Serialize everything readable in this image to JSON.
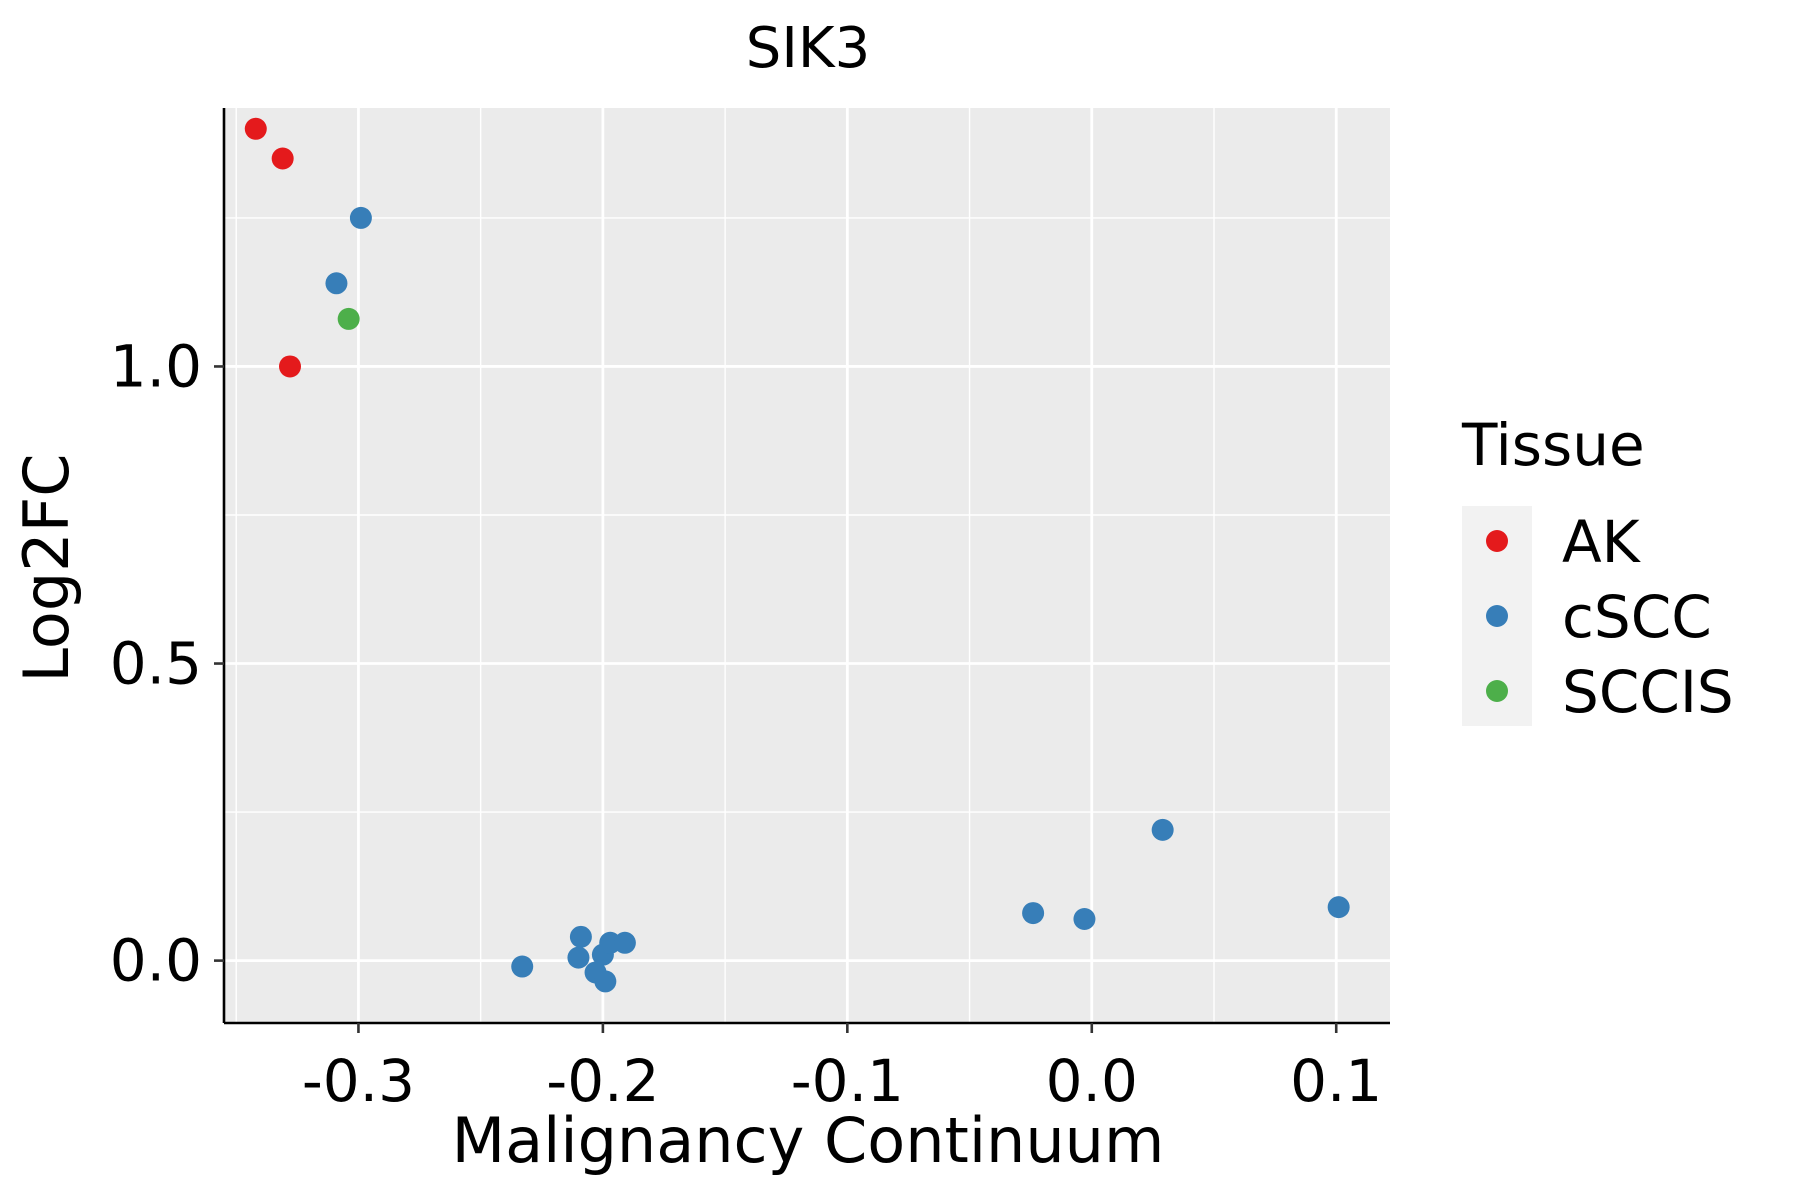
{
  "chart_data": {
    "type": "scatter",
    "title": "SIK3",
    "xlabel": "Malignancy Continuum",
    "ylabel": "Log2FC",
    "xlim": [
      -0.355,
      0.122
    ],
    "ylim": [
      -0.105,
      1.435
    ],
    "x_ticks": [
      -0.3,
      -0.2,
      -0.1,
      0.0,
      0.1
    ],
    "x_tick_labels": [
      "-0.3",
      "-0.2",
      "-0.1",
      "0.0",
      "0.1"
    ],
    "y_ticks": [
      0.0,
      0.5,
      1.0
    ],
    "y_tick_labels": [
      "0.0",
      "0.5",
      "1.0"
    ],
    "grid": true,
    "legend": {
      "title": "Tissue",
      "position": "right",
      "entries": [
        {
          "label": "AK",
          "color": "#E41A1C"
        },
        {
          "label": "cSCC",
          "color": "#377EB8"
        },
        {
          "label": "SCCIS",
          "color": "#4DAF4A"
        }
      ]
    },
    "series": [
      {
        "name": "AK",
        "color": "#E41A1C",
        "points": [
          {
            "x": -0.342,
            "y": 1.4
          },
          {
            "x": -0.331,
            "y": 1.35
          },
          {
            "x": -0.328,
            "y": 1.0
          }
        ]
      },
      {
        "name": "cSCC",
        "color": "#377EB8",
        "points": [
          {
            "x": -0.299,
            "y": 1.25
          },
          {
            "x": -0.309,
            "y": 1.14
          },
          {
            "x": -0.233,
            "y": -0.01
          },
          {
            "x": -0.209,
            "y": 0.04
          },
          {
            "x": -0.21,
            "y": 0.005
          },
          {
            "x": -0.203,
            "y": -0.02
          },
          {
            "x": -0.2,
            "y": 0.01
          },
          {
            "x": -0.197,
            "y": 0.03
          },
          {
            "x": -0.191,
            "y": 0.03
          },
          {
            "x": -0.199,
            "y": -0.035
          },
          {
            "x": -0.024,
            "y": 0.08
          },
          {
            "x": -0.003,
            "y": 0.07
          },
          {
            "x": 0.029,
            "y": 0.22
          },
          {
            "x": 0.101,
            "y": 0.09
          }
        ]
      },
      {
        "name": "SCCIS",
        "color": "#4DAF4A",
        "points": [
          {
            "x": -0.304,
            "y": 1.08
          }
        ]
      }
    ]
  }
}
